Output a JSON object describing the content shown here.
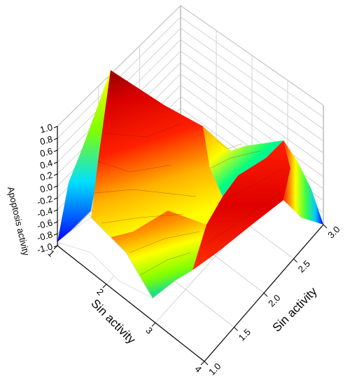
{
  "chart_data": {
    "type": "surface",
    "title": "",
    "xlabel": "Sin activity",
    "ylabel": "Sin activity",
    "zlabel": "Apoptosis activity",
    "x_ticks": [
      "1",
      "2",
      "3",
      "4"
    ],
    "y_ticks": [
      "1.0",
      "1.5",
      "2.0",
      "2.5",
      "3.0"
    ],
    "z_ticks": [
      "1.0",
      "0.8",
      "0.6",
      "0.4",
      "0.2",
      "0.0",
      "-0.2",
      "-0.4",
      "-0.6",
      "-0.8",
      "-1.0"
    ],
    "xlim": [
      1,
      4
    ],
    "ylim": [
      1.0,
      3.0
    ],
    "zlim": [
      -1.0,
      1.0
    ],
    "colormap": [
      "#0000ff",
      "#00c8ff",
      "#00ff80",
      "#80ff00",
      "#ffff00",
      "#ffa000",
      "#ff2000",
      "#e00000",
      "#8b0000"
    ],
    "surface": [
      {
        "x": 1,
        "y": 1.0,
        "z": -0.8
      },
      {
        "x": 1,
        "y": 2.5,
        "z": 1.0
      },
      {
        "x": 1,
        "y": 3.0,
        "z": -0.8
      },
      {
        "x": 2,
        "y": 2.4,
        "z": 0.55
      },
      {
        "x": 2,
        "y": 3.0,
        "z": 0.25
      },
      {
        "x": 2.5,
        "y": 2.0,
        "z": -0.05
      },
      {
        "x": 2,
        "y": 1.2,
        "z": -0.15
      },
      {
        "x": 2.5,
        "y": 1.5,
        "z": 0.55
      },
      {
        "x": 3,
        "y": 3.0,
        "z": -0.85
      },
      {
        "x": 3.5,
        "y": 1.8,
        "z": 0.25
      }
    ],
    "grid": true
  }
}
